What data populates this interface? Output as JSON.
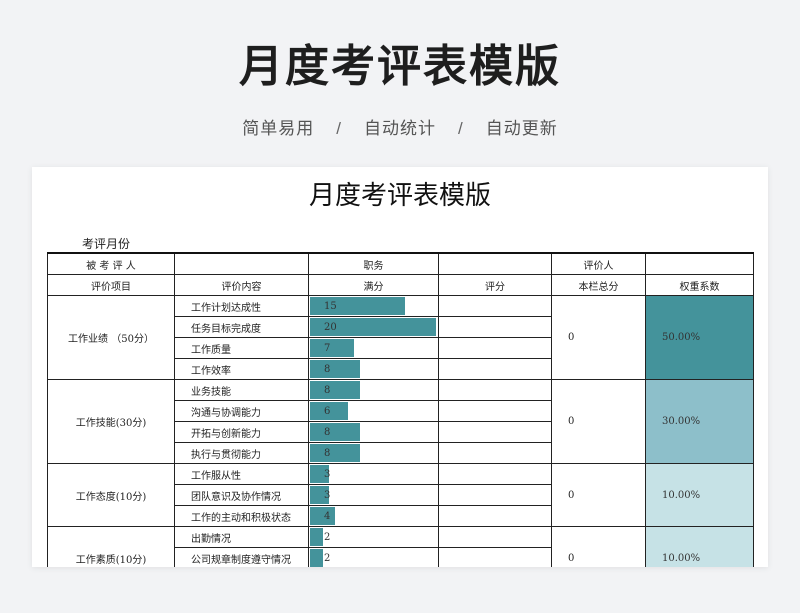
{
  "hero": {
    "title": "月度考评表模版",
    "tags": [
      "简单易用",
      "自动统计",
      "自动更新"
    ],
    "separator": "/"
  },
  "sheet": {
    "title": "月度考评表模版",
    "month_label": "考评月份",
    "info_row": {
      "reviewee_label": "被 考 评 人",
      "position_label": "职务",
      "reviewer_label": "评价人"
    },
    "headers": {
      "item": "评价项目",
      "content": "评价内容",
      "full_score": "满分",
      "score": "评分",
      "total": "本栏总分",
      "weight": "权重系数"
    },
    "bar_max": 20,
    "colors": {
      "bar": "#44939b",
      "weight_1": "#44939b",
      "weight_2": "#8dbfca",
      "weight_3": "#c6e2e6",
      "weight_4": "#c6e2e6"
    },
    "groups": [
      {
        "name": "工作业绩 （50分）",
        "total": "0",
        "weight": "50.00%",
        "items": [
          {
            "content": "工作计划达成性",
            "full": 15
          },
          {
            "content": "任务目标完成度",
            "full": 20
          },
          {
            "content": "工作质量",
            "full": 7
          },
          {
            "content": "工作效率",
            "full": 8
          }
        ]
      },
      {
        "name": "工作技能(30分)",
        "total": "0",
        "weight": "30.00%",
        "items": [
          {
            "content": "业务技能",
            "full": 8
          },
          {
            "content": "沟通与协调能力",
            "full": 6
          },
          {
            "content": "开拓与创新能力",
            "full": 8
          },
          {
            "content": "执行与贯彻能力",
            "full": 8
          }
        ]
      },
      {
        "name": "工作态度(10分)",
        "total": "0",
        "weight": "10.00%",
        "items": [
          {
            "content": "工作服从性",
            "full": 3
          },
          {
            "content": "团队意识及协作情况",
            "full": 3
          },
          {
            "content": "工作的主动和积极状态",
            "full": 4
          }
        ]
      },
      {
        "name": "工作素质(10分)",
        "total": "0",
        "weight": "10.00%",
        "items": [
          {
            "content": "出勤情况",
            "full": 2
          },
          {
            "content": "公司规章制度遵守情况",
            "full": 2
          },
          {
            "content": "",
            "full": null
          }
        ]
      }
    ]
  }
}
